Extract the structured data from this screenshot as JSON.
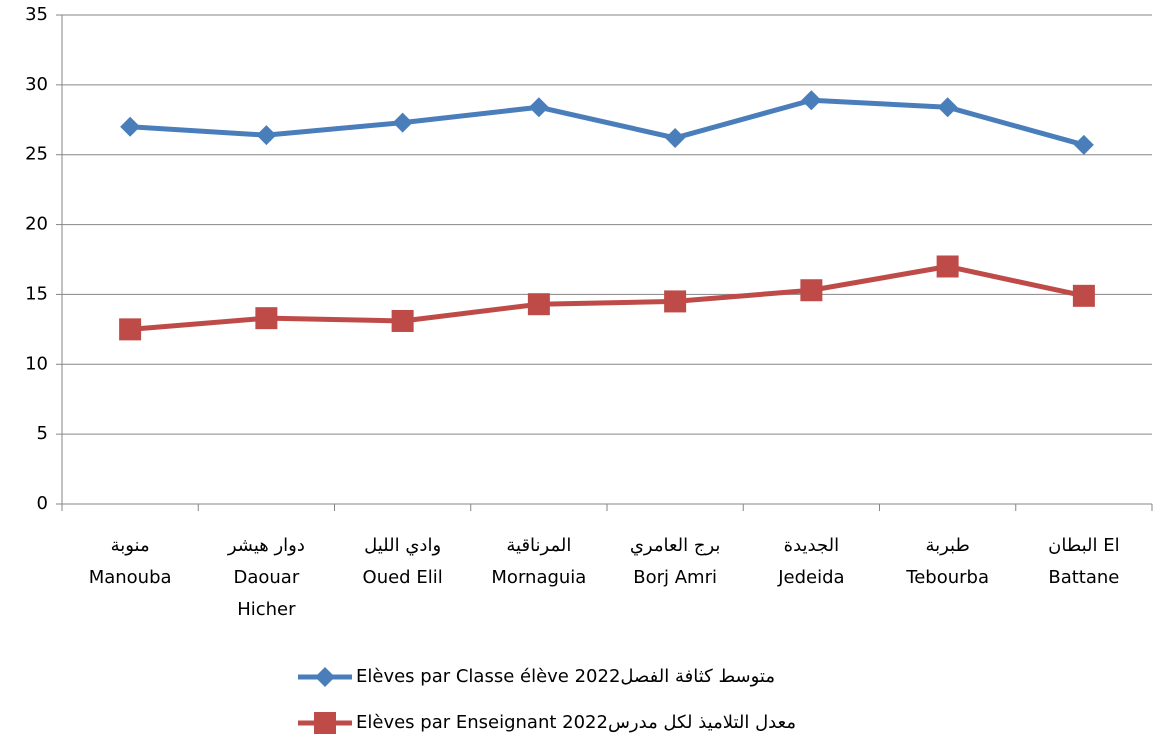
{
  "chart_data": {
    "type": "line",
    "categories": [
      [
        "منوبة",
        "Manouba"
      ],
      [
        "دوار هيشر",
        "Daouar",
        "Hicher"
      ],
      [
        "وادي الليل",
        "Oued Elil"
      ],
      [
        "المرناقية",
        "Mornaguia"
      ],
      [
        "برج العامري",
        "Borj Amri"
      ],
      [
        "الجديدة",
        "Jedeida"
      ],
      [
        "طبربة",
        "Tebourba"
      ],
      [
        "البطان   El",
        "Battane"
      ]
    ],
    "series": [
      {
        "name": "Elèves par Classe élève  2022متوسط كثافة الفصل",
        "color": "#4a7ebb",
        "marker": "diamond",
        "values": [
          27.0,
          26.4,
          27.3,
          28.4,
          26.2,
          28.9,
          28.4,
          25.7
        ]
      },
      {
        "name": "Elèves par Enseignant  2022معدل التلاميذ لكل مدرس",
        "color": "#be4b48",
        "marker": "square",
        "values": [
          12.5,
          13.3,
          13.1,
          14.3,
          14.5,
          15.3,
          17.0,
          14.9
        ]
      }
    ],
    "ylim": [
      0,
      35
    ],
    "yticks": [
      0,
      5,
      10,
      15,
      20,
      25,
      30,
      35
    ],
    "grid": true,
    "legend": "bottom"
  }
}
